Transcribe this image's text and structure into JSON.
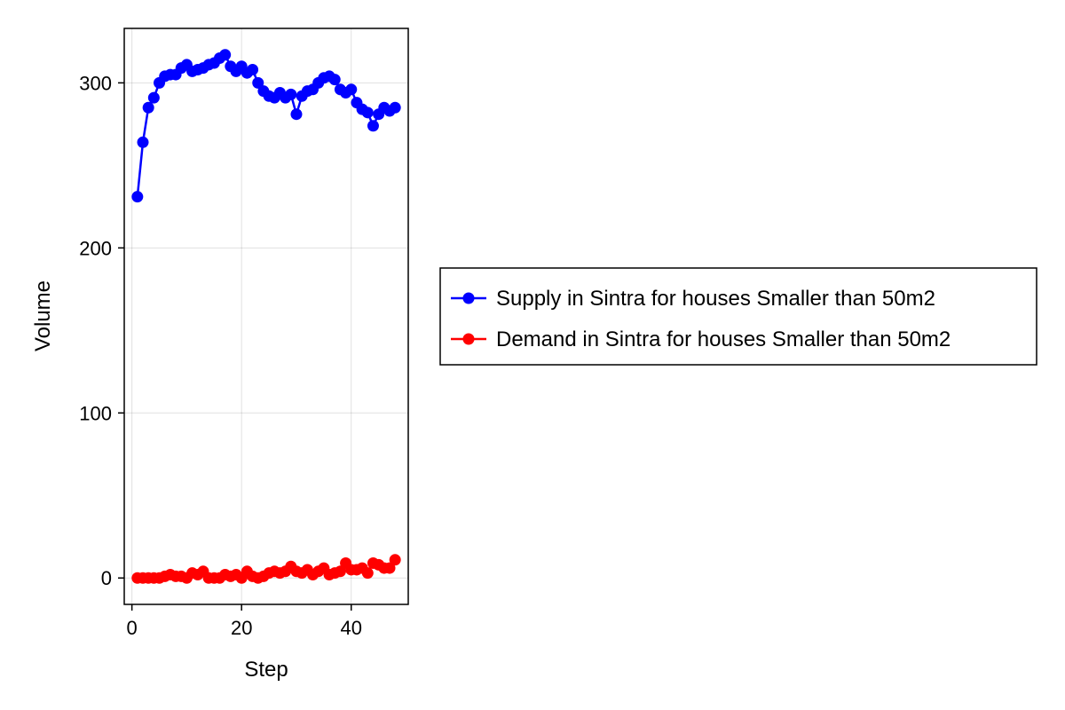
{
  "chart_data": {
    "type": "line",
    "title": "",
    "xlabel": "Step",
    "ylabel": "Volume",
    "xlim": [
      -1.4,
      50.4
    ],
    "ylim": [
      -16,
      333
    ],
    "xticks": [
      0,
      20,
      40
    ],
    "yticks": [
      0,
      100,
      200,
      300
    ],
    "grid": true,
    "legend_position": "right",
    "x": [
      1,
      2,
      3,
      4,
      5,
      6,
      7,
      8,
      9,
      10,
      11,
      12,
      13,
      14,
      15,
      16,
      17,
      18,
      19,
      20,
      21,
      22,
      23,
      24,
      25,
      26,
      27,
      28,
      29,
      30,
      31,
      32,
      33,
      34,
      35,
      36,
      37,
      38,
      39,
      40,
      41,
      42,
      43,
      44,
      45,
      46,
      47,
      48
    ],
    "series": [
      {
        "name": "Supply in Sintra for houses Smaller than 50m2",
        "color": "#0000ff",
        "values": [
          231,
          264,
          285,
          291,
          300,
          304,
          305,
          305,
          309,
          311,
          307,
          308,
          309,
          311,
          312,
          315,
          317,
          310,
          307,
          310,
          306,
          308,
          300,
          295,
          292,
          291,
          294,
          291,
          293,
          281,
          292,
          295,
          296,
          300,
          303,
          304,
          302,
          296,
          294,
          296,
          288,
          284,
          282,
          274,
          281,
          285,
          283,
          285
        ]
      },
      {
        "name": "Demand in Sintra for houses Smaller than 50m2",
        "color": "#ff0000",
        "values": [
          0,
          0,
          0,
          0,
          0,
          1,
          2,
          1,
          1,
          0,
          3,
          2,
          4,
          0,
          0,
          0,
          2,
          1,
          2,
          0,
          4,
          1,
          0,
          1,
          3,
          4,
          3,
          4,
          7,
          4,
          3,
          5,
          2,
          4,
          6,
          2,
          3,
          4,
          9,
          5,
          5,
          6,
          3,
          9,
          8,
          6,
          6,
          11
        ]
      }
    ]
  }
}
